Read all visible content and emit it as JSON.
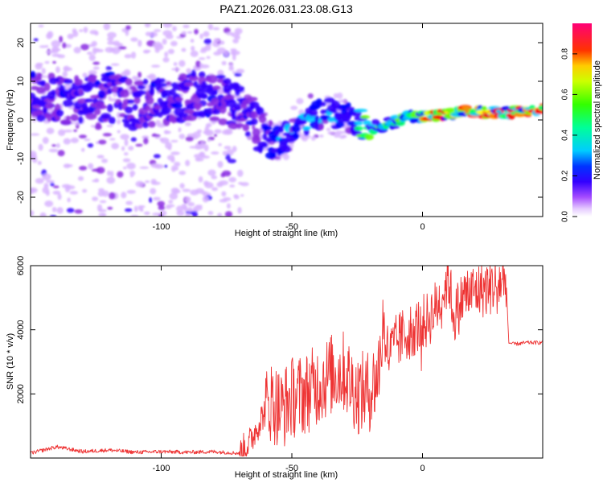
{
  "title": "PAZ1.2026.031.23.08.G13",
  "chart_data": [
    {
      "type": "heatmap",
      "xlabel": "Height of straight line (km)",
      "ylabel": "Frequency (Hz)",
      "xlim": [
        -150,
        46
      ],
      "ylim": [
        -25,
        25
      ],
      "xticks": [
        -100,
        -50,
        0
      ],
      "yticks": [
        -20,
        -10,
        0,
        10,
        20
      ],
      "colorbar": {
        "label": "Normalized spectral amplitude",
        "range": [
          0.0,
          0.95
        ],
        "ticks": [
          0.0,
          0.2,
          0.4,
          0.6,
          0.8
        ],
        "colormap": [
          "#ffffff",
          "#d8b4ff",
          "#8a2be2",
          "#3300ff",
          "#0000ff",
          "#00ccff",
          "#00ff66",
          "#66ff00",
          "#ffff00",
          "#ff8800",
          "#ff0000",
          "#ff0077"
        ]
      },
      "ridge": [
        {
          "x": -148,
          "y": 6
        },
        {
          "x": -135,
          "y": 5
        },
        {
          "x": -125,
          "y": 7
        },
        {
          "x": -110,
          "y": 4
        },
        {
          "x": -95,
          "y": 5
        },
        {
          "x": -85,
          "y": 7
        },
        {
          "x": -75,
          "y": 5
        },
        {
          "x": -65,
          "y": 0
        },
        {
          "x": -58,
          "y": -6
        },
        {
          "x": -52,
          "y": -4
        },
        {
          "x": -45,
          "y": 0
        },
        {
          "x": -38,
          "y": 2
        },
        {
          "x": -30,
          "y": 1
        },
        {
          "x": -20,
          "y": -2
        },
        {
          "x": -12,
          "y": -1
        },
        {
          "x": -5,
          "y": 1
        },
        {
          "x": 5,
          "y": 1
        },
        {
          "x": 15,
          "y": 2
        },
        {
          "x": 25,
          "y": 2
        },
        {
          "x": 35,
          "y": 2
        },
        {
          "x": 46,
          "y": 3
        }
      ]
    },
    {
      "type": "line",
      "xlabel": "Height of straight line (km)",
      "ylabel": "SNR (10 * v/v)",
      "xlim": [
        -150,
        46
      ],
      "ylim": [
        0,
        6000
      ],
      "xticks": [
        -100,
        -50,
        0
      ],
      "yticks": [
        2000,
        4000,
        6000
      ],
      "color": "#ee3333",
      "series": [
        {
          "name": "SNR",
          "x": [
            -150,
            -140,
            -130,
            -120,
            -110,
            -100,
            -90,
            -80,
            -70,
            -66,
            -62,
            -58,
            -54,
            -50,
            -45,
            -40,
            -35,
            -30,
            -25,
            -20,
            -17,
            -15,
            -13,
            -10,
            -6,
            -2,
            2,
            6,
            9,
            10,
            12,
            16,
            20,
            25,
            30,
            32,
            33,
            35,
            40,
            46
          ],
          "y": [
            150,
            350,
            200,
            250,
            180,
            200,
            180,
            200,
            150,
            500,
            1200,
            1800,
            1500,
            1900,
            2000,
            2300,
            2600,
            2700,
            2000,
            2100,
            2600,
            4200,
            3200,
            3600,
            3900,
            4100,
            4300,
            4800,
            5400,
            5600,
            4400,
            5100,
            5200,
            5300,
            5500,
            5600,
            3600,
            3550,
            3600,
            3600
          ]
        }
      ]
    }
  ]
}
